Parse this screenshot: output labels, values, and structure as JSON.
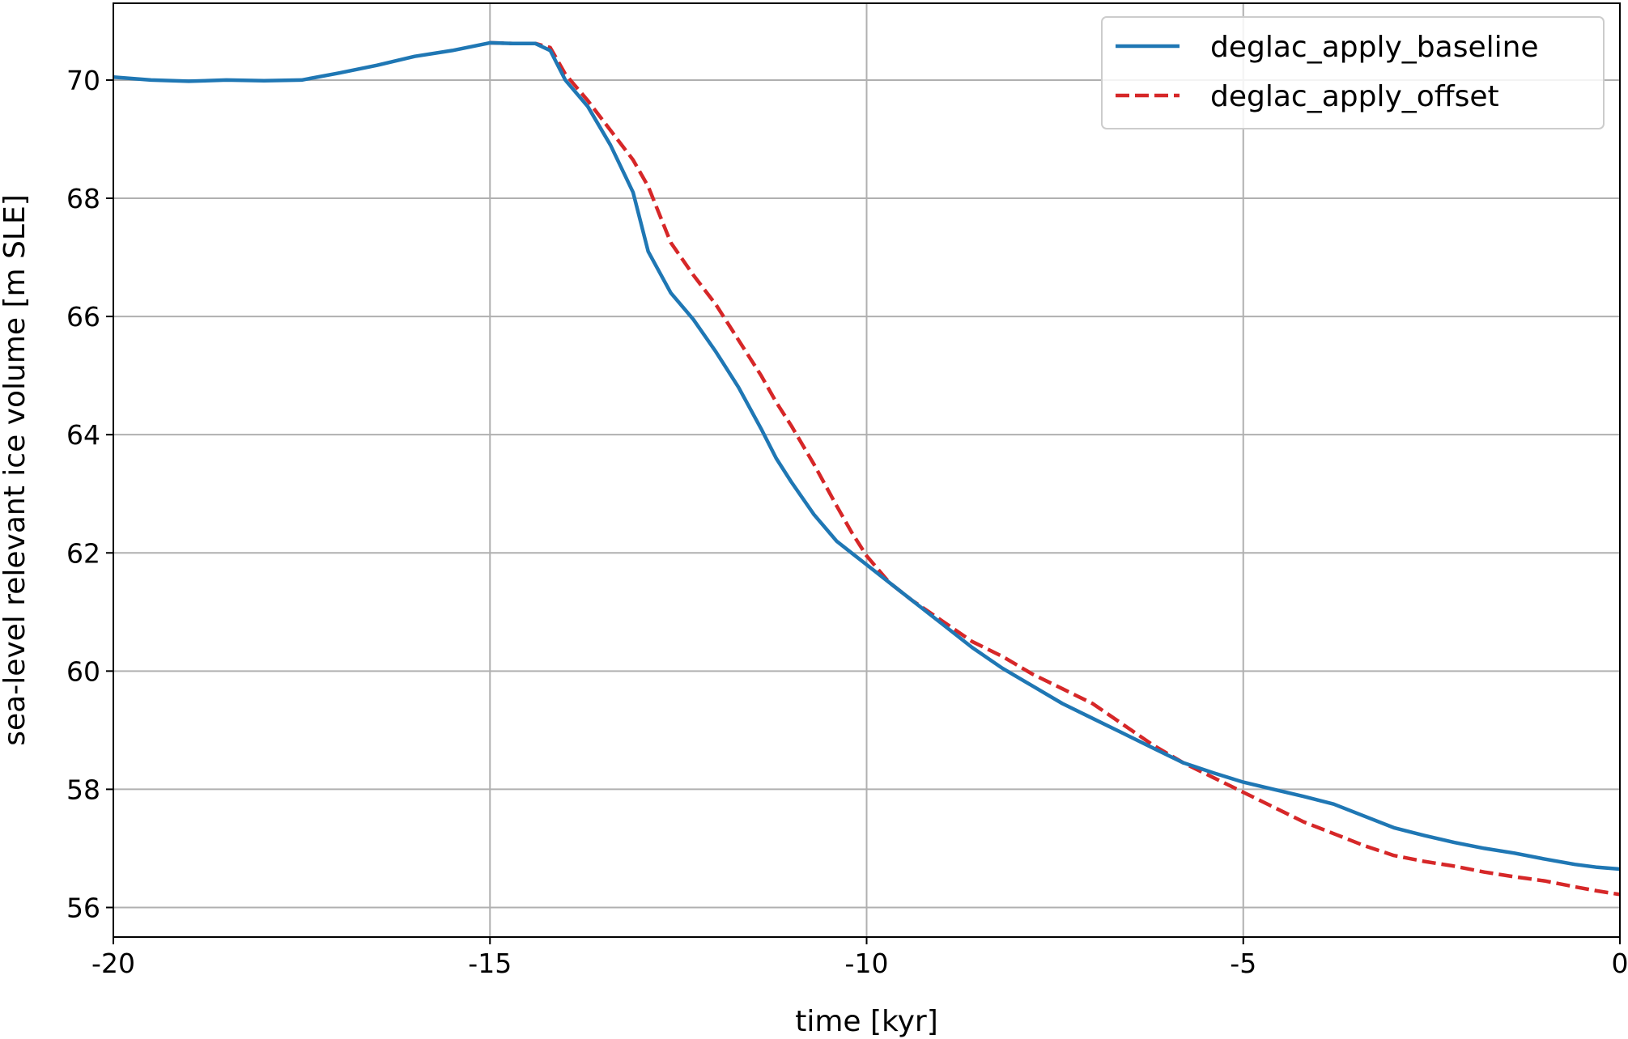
{
  "chart_data": {
    "type": "line",
    "title": "",
    "xlabel": "time [kyr]",
    "ylabel": "sea-level relevant ice volume [m SLE]",
    "xlim": [
      -20,
      0
    ],
    "ylim": [
      55.5,
      71.3
    ],
    "xticks": [
      -20,
      -15,
      -10,
      -5,
      0
    ],
    "xtick_labels": [
      "-20",
      "-15",
      "-10",
      "-5",
      "0"
    ],
    "yticks": [
      56,
      58,
      60,
      62,
      64,
      66,
      68,
      70
    ],
    "ytick_labels": [
      "56",
      "58",
      "60",
      "62",
      "64",
      "66",
      "68",
      "70"
    ],
    "grid": true,
    "legend_position": "top-right",
    "series": [
      {
        "name": "deglac_apply_baseline",
        "color": "#1f77b4",
        "style": "solid",
        "x": [
          -20,
          -19.5,
          -19,
          -18.5,
          -18,
          -17.5,
          -17,
          -16.5,
          -16,
          -15.5,
          -15,
          -14.7,
          -14.4,
          -14.2,
          -14.0,
          -13.7,
          -13.4,
          -13.1,
          -12.9,
          -12.6,
          -12.3,
          -12.0,
          -11.7,
          -11.4,
          -11.2,
          -11.0,
          -10.7,
          -10.4,
          -10.2,
          -10.0,
          -9.7,
          -9.4,
          -9.0,
          -8.6,
          -8.2,
          -7.8,
          -7.4,
          -7.0,
          -6.6,
          -6.2,
          -5.8,
          -5.4,
          -5.0,
          -4.6,
          -4.2,
          -3.8,
          -3.4,
          -3.0,
          -2.6,
          -2.2,
          -1.8,
          -1.4,
          -1.0,
          -0.6,
          -0.3,
          0
        ],
        "y": [
          70.05,
          70.0,
          69.98,
          70.0,
          69.99,
          70.0,
          70.12,
          70.25,
          70.4,
          70.5,
          70.63,
          70.62,
          70.62,
          70.5,
          70.0,
          69.55,
          68.9,
          68.1,
          67.1,
          66.4,
          65.95,
          65.4,
          64.8,
          64.1,
          63.6,
          63.2,
          62.65,
          62.2,
          62.0,
          61.8,
          61.5,
          61.2,
          60.8,
          60.4,
          60.05,
          59.75,
          59.45,
          59.2,
          58.95,
          58.7,
          58.45,
          58.28,
          58.12,
          58.0,
          57.88,
          57.75,
          57.55,
          57.35,
          57.22,
          57.1,
          57.0,
          56.92,
          56.82,
          56.73,
          56.68,
          56.65
        ]
      },
      {
        "name": "deglac_apply_offset",
        "color": "#d62728",
        "style": "dashed",
        "x": [
          -15,
          -14.7,
          -14.4,
          -14.2,
          -14.0,
          -13.7,
          -13.4,
          -13.1,
          -12.9,
          -12.6,
          -12.3,
          -12.0,
          -11.7,
          -11.4,
          -11.2,
          -11.0,
          -10.7,
          -10.4,
          -10.2,
          -10.0,
          -9.7,
          -9.4,
          -9.0,
          -8.6,
          -8.2,
          -7.8,
          -7.4,
          -7.0,
          -6.6,
          -6.2,
          -5.8,
          -5.4,
          -5.0,
          -4.6,
          -4.2,
          -3.8,
          -3.4,
          -3.0,
          -2.6,
          -2.2,
          -1.8,
          -1.4,
          -1.0,
          -0.6,
          -0.3,
          0
        ],
        "y": [
          70.63,
          70.62,
          70.62,
          70.55,
          70.1,
          69.65,
          69.15,
          68.65,
          68.2,
          67.25,
          66.7,
          66.2,
          65.6,
          65.0,
          64.55,
          64.15,
          63.5,
          62.8,
          62.35,
          61.95,
          61.5,
          61.2,
          60.85,
          60.5,
          60.25,
          59.95,
          59.7,
          59.45,
          59.1,
          58.75,
          58.45,
          58.2,
          57.95,
          57.7,
          57.45,
          57.25,
          57.05,
          56.88,
          56.78,
          56.7,
          56.6,
          56.52,
          56.45,
          56.35,
          56.28,
          56.22
        ]
      }
    ]
  }
}
